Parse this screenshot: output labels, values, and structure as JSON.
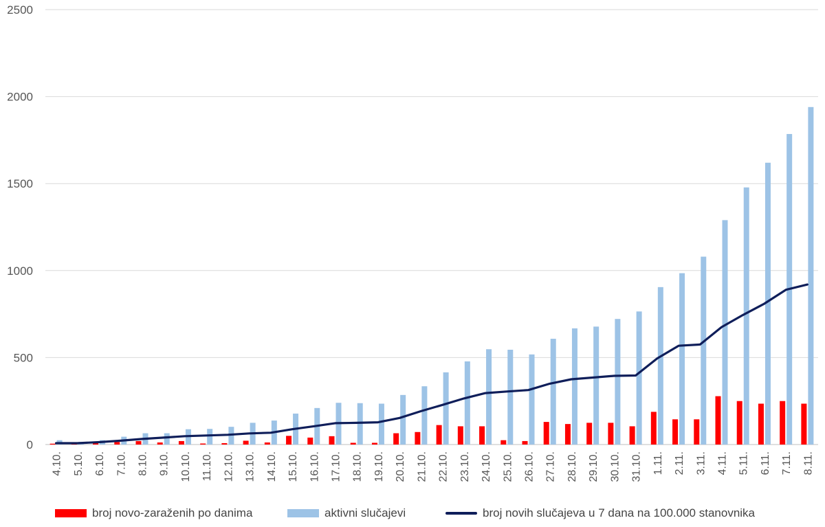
{
  "chart_data": {
    "type": "bar",
    "categories": [
      "4.10.",
      "5.10.",
      "6.10.",
      "7.10.",
      "8.10.",
      "9.10.",
      "10.10.",
      "11.10.",
      "12.10.",
      "13.10.",
      "14.10.",
      "15.10.",
      "16.10.",
      "17.10.",
      "18.10.",
      "19.10.",
      "20.10.",
      "21.10.",
      "22.10.",
      "23.10.",
      "24.10.",
      "25.10.",
      "26.10.",
      "27.10.",
      "28.10.",
      "29.10.",
      "30.10.",
      "31.10.",
      "1.11.",
      "2.11.",
      "3.11.",
      "4.11.",
      "5.11.",
      "6.11.",
      "7.11.",
      "8.11."
    ],
    "series": [
      {
        "name": "broj novo-zaraženih po danima",
        "type": "bar",
        "color": "#ff0000",
        "values": [
          5,
          3,
          8,
          15,
          20,
          12,
          20,
          6,
          8,
          22,
          12,
          50,
          40,
          48,
          10,
          10,
          65,
          72,
          112,
          105,
          105,
          25,
          20,
          130,
          118,
          125,
          125,
          105,
          188,
          145,
          145,
          278,
          250,
          235,
          250,
          235
        ]
      },
      {
        "name": "aktivni slučajevi",
        "type": "bar",
        "color": "#9dc3e6",
        "values": [
          25,
          15,
          25,
          45,
          65,
          65,
          88,
          90,
          102,
          125,
          138,
          178,
          210,
          240,
          238,
          235,
          285,
          335,
          415,
          478,
          548,
          545,
          518,
          608,
          668,
          678,
          722,
          765,
          905,
          985,
          1080,
          1290,
          1478,
          1620,
          1785,
          1940
        ]
      },
      {
        "name": "broj novih slučajeva u 7 dana na 100.000 stanovnika",
        "type": "line",
        "color": "#0f1e5a",
        "values": [
          8,
          8,
          14,
          22,
          32,
          40,
          48,
          52,
          56,
          64,
          68,
          88,
          105,
          123,
          125,
          128,
          153,
          192,
          228,
          265,
          296,
          305,
          313,
          350,
          375,
          385,
          395,
          397,
          495,
          568,
          575,
          675,
          745,
          810,
          890,
          920
        ]
      }
    ],
    "ylim": [
      0,
      2500
    ],
    "yticks": [
      0,
      500,
      1000,
      1500,
      2000,
      2500
    ],
    "grid": true,
    "legend_position": "bottom",
    "title": "",
    "xlabel": "",
    "ylabel": ""
  }
}
